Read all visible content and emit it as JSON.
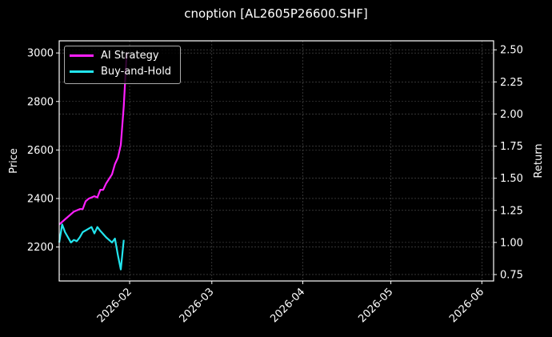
{
  "title": "cnoption [AL2605P26600.SHF]",
  "legend": [
    {
      "label": "AI Strategy",
      "color": "#ff1fff"
    },
    {
      "label": "Buy-and-Hold",
      "color": "#22e5ee"
    }
  ],
  "axes": {
    "y_left_label": "Price",
    "y_right_label": "Return",
    "y_left_ticks": [
      "2200",
      "2400",
      "2600",
      "2800",
      "3000"
    ],
    "y_right_ticks": [
      "0.75",
      "1.00",
      "1.25",
      "1.50",
      "1.75",
      "2.00",
      "2.25",
      "2.50"
    ],
    "x_ticks": [
      "2026-02",
      "2026-03",
      "2026-04",
      "2026-05",
      "2026-06"
    ]
  },
  "chart_data": {
    "type": "line",
    "title": "cnoption [AL2605P26600.SHF]",
    "xlabel": "",
    "ylabel": "Price",
    "ylabel_right": "Return",
    "ylim": [
      2060,
      3050
    ],
    "ylim_right": [
      0.7,
      2.57
    ],
    "xlim": [
      "2026-01-08",
      "2026-06-05"
    ],
    "grid": true,
    "legend_position": "upper left",
    "x_ticks": [
      "2026-02",
      "2026-03",
      "2026-04",
      "2026-05",
      "2026-06"
    ],
    "series": [
      {
        "name": "AI Strategy",
        "axis": "right",
        "color": "#ff1fff",
        "x": [
          "2026-01-08",
          "2026-01-10",
          "2026-01-13",
          "2026-01-15",
          "2026-01-16",
          "2026-01-17",
          "2026-01-18",
          "2026-01-20",
          "2026-01-21",
          "2026-01-22",
          "2026-01-23",
          "2026-01-24",
          "2026-01-26",
          "2026-01-27",
          "2026-01-28",
          "2026-01-29",
          "2026-01-30",
          "2026-01-31"
        ],
        "values": [
          1.14,
          1.18,
          1.24,
          1.26,
          1.26,
          1.32,
          1.34,
          1.36,
          1.35,
          1.41,
          1.41,
          1.46,
          1.53,
          1.61,
          1.66,
          1.76,
          2.06,
          2.48
        ]
      },
      {
        "name": "Buy-and-Hold",
        "axis": "right",
        "color": "#22e5ee",
        "x": [
          "2026-01-08",
          "2026-01-09",
          "2026-01-10",
          "2026-01-12",
          "2026-01-13",
          "2026-01-14",
          "2026-01-15",
          "2026-01-16",
          "2026-01-19",
          "2026-01-20",
          "2026-01-21",
          "2026-01-22",
          "2026-01-24",
          "2026-01-26",
          "2026-01-27",
          "2026-01-28",
          "2026-01-29",
          "2026-01-30"
        ],
        "values": [
          1.0,
          1.14,
          1.08,
          1.0,
          1.02,
          1.01,
          1.04,
          1.08,
          1.12,
          1.07,
          1.12,
          1.09,
          1.04,
          1.0,
          1.03,
          0.9,
          0.79,
          1.02
        ]
      }
    ]
  }
}
